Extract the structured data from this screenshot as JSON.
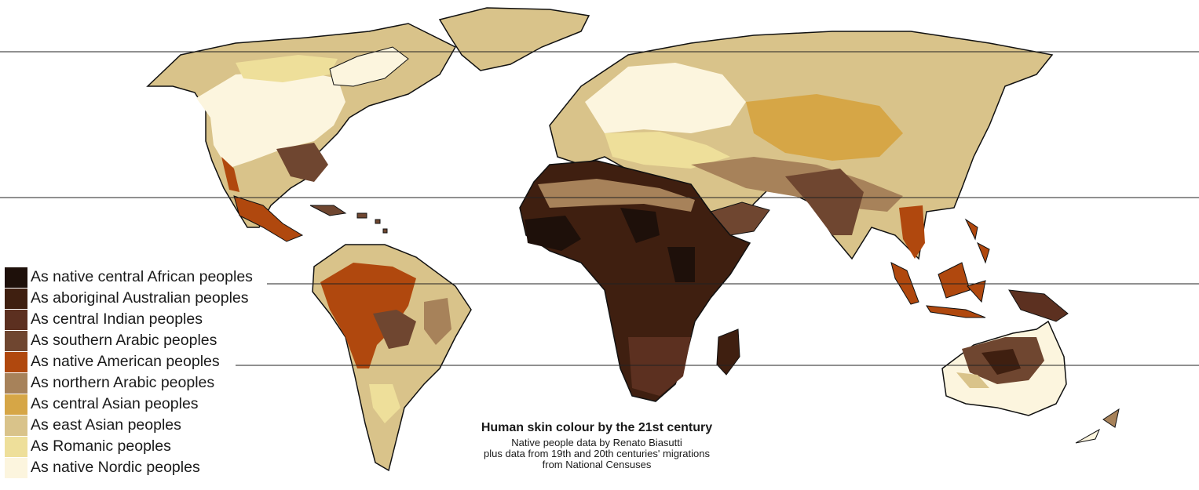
{
  "map": {
    "colors": {
      "ocean": "#ffffff",
      "outline": "#111111",
      "latitude_line": "#222222"
    },
    "legend": [
      {
        "label": "As native central African peoples",
        "color": "#1e100a"
      },
      {
        "label": "As aboriginal Australian peoples",
        "color": "#3f1f10"
      },
      {
        "label": "As central Indian peoples",
        "color": "#5c3020"
      },
      {
        "label": "As southern Arabic peoples",
        "color": "#6f4630"
      },
      {
        "label": "As native American peoples",
        "color": "#b0480e"
      },
      {
        "label": "As northern Arabic peoples",
        "color": "#a7825a"
      },
      {
        "label": "As central Asian peoples",
        "color": "#d6a646"
      },
      {
        "label": "As east Asian peoples",
        "color": "#d9c38a"
      },
      {
        "label": "As Romanic peoples",
        "color": "#eedf9a"
      },
      {
        "label": "As native Nordic peoples",
        "color": "#fcf5de"
      }
    ],
    "caption": {
      "title": "Human skin colour by the 21st century",
      "lines": [
        "Native people data by Renato Biasutti",
        "plus data from 19th and 20th centuries' migrations",
        "from National Censuses"
      ]
    }
  }
}
